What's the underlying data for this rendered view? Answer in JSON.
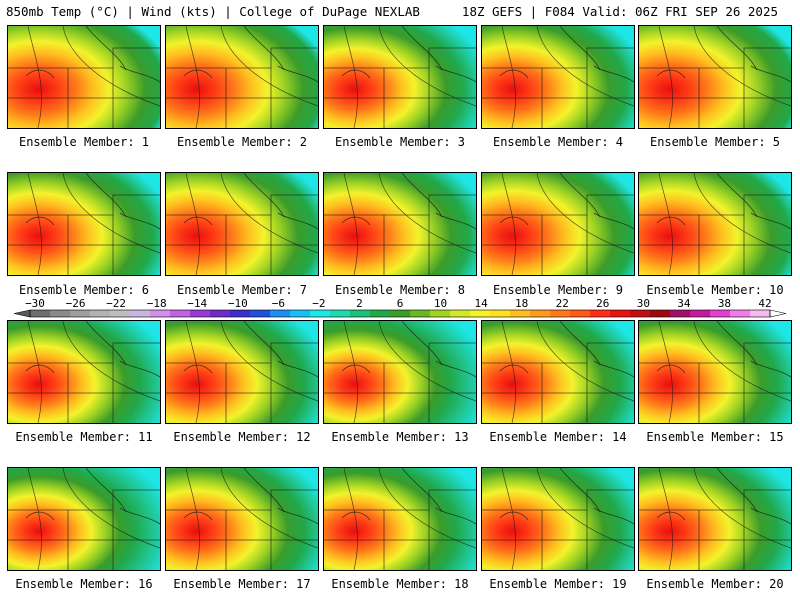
{
  "header": {
    "left": "850mb Temp (°C) | Wind (kts) | College of DuPage NEXLAB",
    "right": "18Z GEFS | F084 Valid: 06Z FRI SEP 26 2025"
  },
  "panel_label_prefix": "Ensemble Member: ",
  "members": [
    {
      "label": "Ensemble Member: 1",
      "hot": 1.0
    },
    {
      "label": "Ensemble Member: 2",
      "hot": 1.0
    },
    {
      "label": "Ensemble Member: 3",
      "hot": 0.85
    },
    {
      "label": "Ensemble Member: 4",
      "hot": 0.9
    },
    {
      "label": "Ensemble Member: 5",
      "hot": 1.0
    },
    {
      "label": "Ensemble Member: 6",
      "hot": 0.9
    },
    {
      "label": "Ensemble Member: 7",
      "hot": 0.95
    },
    {
      "label": "Ensemble Member: 8",
      "hot": 0.9
    },
    {
      "label": "Ensemble Member: 9",
      "hot": 0.95
    },
    {
      "label": "Ensemble Member: 10",
      "hot": 0.95
    },
    {
      "label": "Ensemble Member: 11",
      "hot": 0.8
    },
    {
      "label": "Ensemble Member: 12",
      "hot": 0.85
    },
    {
      "label": "Ensemble Member: 13",
      "hot": 0.75
    },
    {
      "label": "Ensemble Member: 14",
      "hot": 0.85
    },
    {
      "label": "Ensemble Member: 15",
      "hot": 0.85
    },
    {
      "label": "Ensemble Member: 16",
      "hot": 0.75
    },
    {
      "label": "Ensemble Member: 17",
      "hot": 0.85
    },
    {
      "label": "Ensemble Member: 18",
      "hot": 0.8
    },
    {
      "label": "Ensemble Member: 19",
      "hot": 0.85
    },
    {
      "label": "Ensemble Member: 20",
      "hot": 0.85
    }
  ],
  "color_scale": {
    "tick_labels": [
      "−30",
      "−26",
      "−22",
      "−18",
      "−14",
      "−10",
      "−6",
      "−2",
      "2",
      "6",
      "10",
      "14",
      "18",
      "22",
      "26",
      "30",
      "34",
      "38",
      "42"
    ],
    "colors": [
      "#6e6e6e",
      "#8a8a8a",
      "#9e9e9e",
      "#b2b2b2",
      "#bdbdbd",
      "#c9b6df",
      "#d18fe6",
      "#c063e0",
      "#9a3ad4",
      "#6f2bc6",
      "#3d2dc9",
      "#2350d8",
      "#1a8ff0",
      "#18bff2",
      "#1ee6e6",
      "#20d9b0",
      "#1fc07c",
      "#21a84a",
      "#3b9c2a",
      "#6ab724",
      "#9fd324",
      "#d3e82b",
      "#f3f32b",
      "#ffe024",
      "#ffbe1f",
      "#ff9a1c",
      "#ff7a1a",
      "#ff5a18",
      "#ff2e16",
      "#e61515",
      "#c01010",
      "#9c0c0c",
      "#a0106a",
      "#c21a9e",
      "#e23fd0",
      "#f27de6",
      "#f7b8f0"
    ]
  }
}
